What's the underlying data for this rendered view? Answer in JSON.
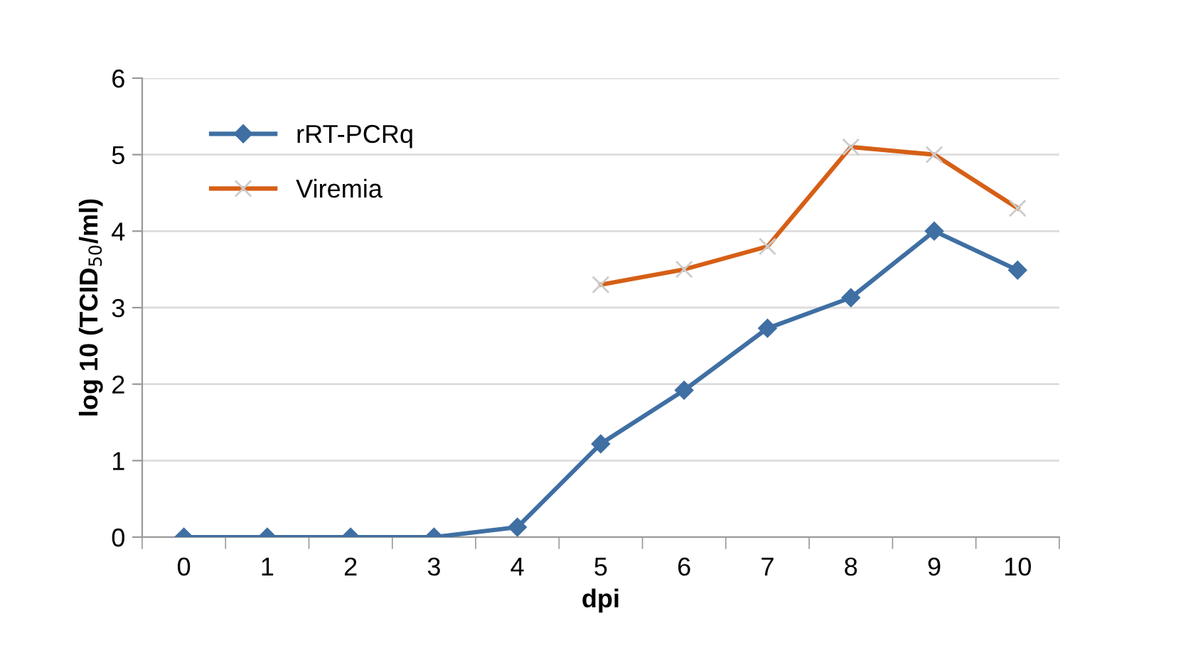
{
  "chart_data": {
    "type": "line",
    "xlabel": "dpi",
    "ylabel": "log 10 (TCID$_{50}$/ml)",
    "categories": [
      "0",
      "1",
      "2",
      "3",
      "4",
      "5",
      "6",
      "7",
      "8",
      "9",
      "10"
    ],
    "series": [
      {
        "name": "rRT-PCRq",
        "color": "#3f6fa3",
        "marker": "diamond",
        "values": [
          0,
          0,
          0,
          0,
          0.13,
          1.22,
          1.92,
          2.73,
          3.13,
          4.0,
          3.49
        ]
      },
      {
        "name": "Viremia",
        "color": "#d65f16",
        "marker": "cross",
        "values": [
          null,
          null,
          null,
          null,
          null,
          3.3,
          3.5,
          3.8,
          5.1,
          5.0,
          4.3
        ]
      }
    ],
    "ylim": [
      0,
      6
    ],
    "yticks": [
      0,
      1,
      2,
      3,
      4,
      5,
      6
    ],
    "grid": "y",
    "legend": "top left",
    "line_style": "solid"
  }
}
